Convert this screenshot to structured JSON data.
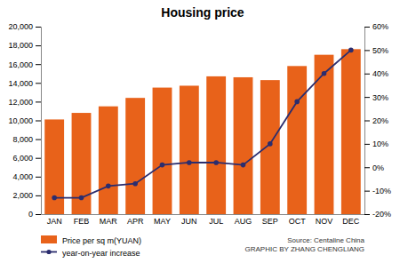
{
  "chart_data": {
    "type": "bar",
    "title": "Housing price",
    "categories": [
      "JAN",
      "FEB",
      "MAR",
      "APR",
      "MAY",
      "JUN",
      "JUL",
      "AUG",
      "SEP",
      "OCT",
      "NOV",
      "DEC"
    ],
    "series": [
      {
        "name": "Price per sq m(YUAN)",
        "type": "bar",
        "color": "#E8621A",
        "values": [
          10100,
          10800,
          11500,
          12400,
          13500,
          13700,
          14700,
          14600,
          14300,
          15800,
          17000,
          17600
        ]
      },
      {
        "name": "year-on-year increase",
        "type": "line",
        "axis": "y2",
        "color": "#2B2D6E",
        "marker": "circle",
        "line_style": "solid",
        "values": [
          -13,
          -13,
          -8,
          -7,
          1,
          2,
          2,
          1,
          10,
          28,
          40,
          50
        ]
      }
    ],
    "ylim": [
      0,
      20000
    ],
    "yticks": [
      0,
      {
        "value": 2000,
        "label": "2,000"
      },
      {
        "value": 4000,
        "label": "4,000"
      },
      {
        "value": 6000,
        "label": "6,000"
      },
      {
        "value": 8000,
        "label": "8,000"
      },
      {
        "value": 10000,
        "label": "10,000"
      },
      {
        "value": 12000,
        "label": "12,000"
      },
      {
        "value": 14000,
        "label": "14,000"
      },
      {
        "value": 16000,
        "label": "16,000"
      },
      {
        "value": 18000,
        "label": "18,000"
      },
      {
        "value": 20000,
        "label": "20,000"
      }
    ],
    "y2lim": [
      -20,
      60
    ],
    "y2ticks": [
      {
        "value": -20,
        "label": "-20%"
      },
      {
        "value": -10,
        "label": "-10%"
      },
      {
        "value": 0,
        "label": "0%"
      },
      {
        "value": 10,
        "label": "10%"
      },
      {
        "value": 20,
        "label": "20%"
      },
      {
        "value": 30,
        "label": "30%"
      },
      {
        "value": 40,
        "label": "40%"
      },
      {
        "value": 50,
        "label": "50%"
      },
      {
        "value": 60,
        "label": "60%"
      }
    ],
    "grid": false,
    "legend": "bottom",
    "annotations": [
      "Source: Centaline China\nGRAPHIC BY ZHANG CHENGLIANG"
    ]
  }
}
